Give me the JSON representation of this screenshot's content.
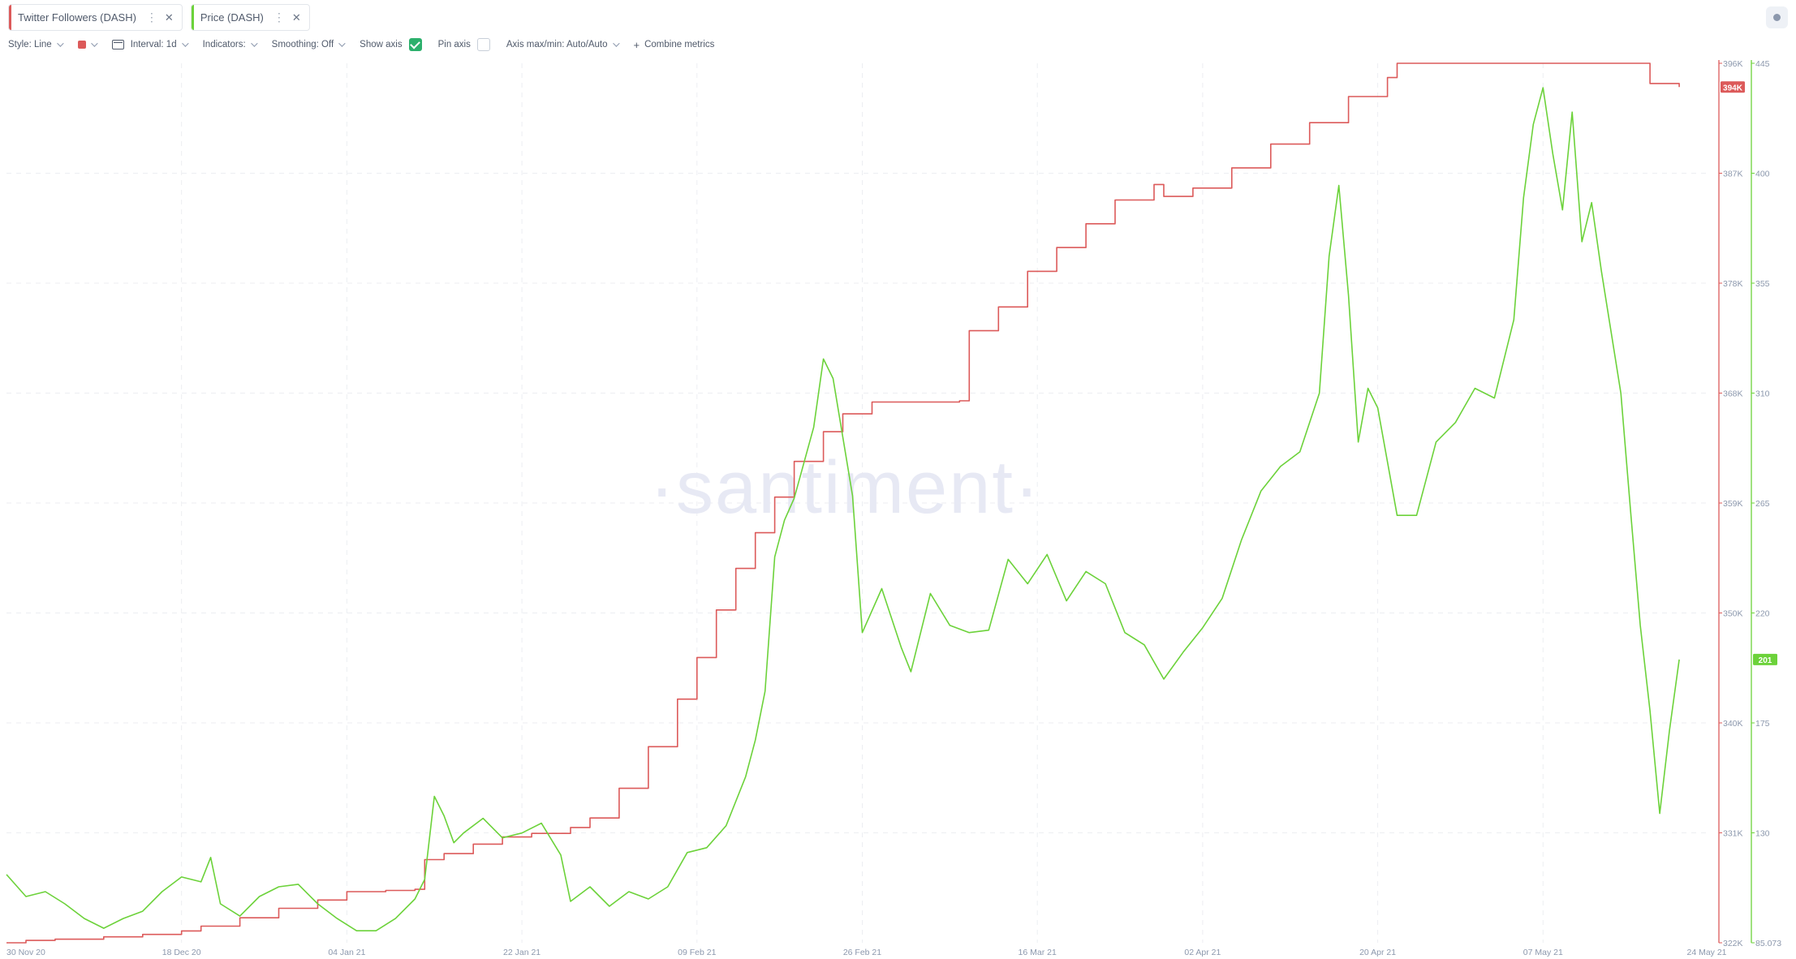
{
  "metrics": [
    {
      "label": "Twitter Followers (DASH)",
      "color": "#dc5a5a"
    },
    {
      "label": "Price (DASH)",
      "color": "#6cd23a"
    }
  ],
  "toolbar": {
    "style": "Style: Line",
    "interval": "Interval: 1d",
    "indicators": "Indicators:",
    "smoothing": "Smoothing: Off",
    "show_axis": "Show axis",
    "show_axis_checked": true,
    "pin_axis": "Pin axis",
    "pin_axis_checked": false,
    "axis_maxmin": "Axis max/min: Auto/Auto",
    "combine": "Combine metrics"
  },
  "watermark": "·santiment·",
  "chart_data": {
    "type": "line",
    "x_ticks": [
      "30 Nov 20",
      "18 Dec 20",
      "04 Jan 21",
      "22 Jan 21",
      "09 Feb 21",
      "26 Feb 21",
      "16 Mar 21",
      "02 Apr 21",
      "20 Apr 21",
      "07 May 21",
      "24 May 21"
    ],
    "x_range": [
      "2020-11-30",
      "2021-05-24"
    ],
    "grid": true,
    "series": [
      {
        "name": "Twitter Followers (DASH)",
        "color": "#dc5a5a",
        "axis_ticks": [
          "396K",
          "387K",
          "378K",
          "368K",
          "359K",
          "350K",
          "340K",
          "331K",
          "322K"
        ],
        "ylim": [
          322000,
          396000
        ],
        "last_value_label": "394K",
        "last_value": 394000,
        "points": [
          [
            "2020-11-30",
            322000
          ],
          [
            "2020-12-02",
            322200
          ],
          [
            "2020-12-05",
            322300
          ],
          [
            "2020-12-10",
            322500
          ],
          [
            "2020-12-14",
            322700
          ],
          [
            "2020-12-18",
            323000
          ],
          [
            "2020-12-20",
            323400
          ],
          [
            "2020-12-24",
            324100
          ],
          [
            "2020-12-28",
            324900
          ],
          [
            "2021-01-01",
            325600
          ],
          [
            "2021-01-04",
            326300
          ],
          [
            "2021-01-08",
            326400
          ],
          [
            "2021-01-11",
            326500
          ],
          [
            "2021-01-12",
            329000
          ],
          [
            "2021-01-14",
            329500
          ],
          [
            "2021-01-17",
            330300
          ],
          [
            "2021-01-20",
            330900
          ],
          [
            "2021-01-23",
            331200
          ],
          [
            "2021-01-27",
            331700
          ],
          [
            "2021-01-29",
            332500
          ],
          [
            "2021-02-01",
            335000
          ],
          [
            "2021-02-04",
            338500
          ],
          [
            "2021-02-07",
            342500
          ],
          [
            "2021-02-09",
            346000
          ],
          [
            "2021-02-11",
            350000
          ],
          [
            "2021-02-13",
            353500
          ],
          [
            "2021-02-15",
            356500
          ],
          [
            "2021-02-17",
            359500
          ],
          [
            "2021-02-19",
            362500
          ],
          [
            "2021-02-22",
            365000
          ],
          [
            "2021-02-24",
            366500
          ],
          [
            "2021-02-27",
            367500
          ],
          [
            "2021-03-05",
            367500
          ],
          [
            "2021-03-08",
            367600
          ],
          [
            "2021-03-09",
            373500
          ],
          [
            "2021-03-12",
            375500
          ],
          [
            "2021-03-15",
            378500
          ],
          [
            "2021-03-18",
            380500
          ],
          [
            "2021-03-21",
            382500
          ],
          [
            "2021-03-24",
            384500
          ],
          [
            "2021-03-28",
            385800
          ],
          [
            "2021-03-29",
            384800
          ],
          [
            "2021-04-01",
            385500
          ],
          [
            "2021-04-05",
            387200
          ],
          [
            "2021-04-09",
            389200
          ],
          [
            "2021-04-13",
            391000
          ],
          [
            "2021-04-17",
            393200
          ],
          [
            "2021-04-21",
            394800
          ],
          [
            "2021-04-22",
            396000
          ],
          [
            "2021-05-17",
            396000
          ],
          [
            "2021-05-18",
            394300
          ],
          [
            "2021-05-21",
            394000
          ]
        ]
      },
      {
        "name": "Price (DASH)",
        "color": "#6cd23a",
        "axis_ticks": [
          "445",
          "400",
          "355",
          "310",
          "265",
          "220",
          "175",
          "130",
          "85.073"
        ],
        "ylim": [
          85.073,
          445
        ],
        "last_value_label": "201",
        "last_value": 201,
        "points": [
          [
            "2020-11-30",
            113
          ],
          [
            "2020-12-02",
            104
          ],
          [
            "2020-12-04",
            106
          ],
          [
            "2020-12-06",
            101
          ],
          [
            "2020-12-08",
            95
          ],
          [
            "2020-12-10",
            91
          ],
          [
            "2020-12-12",
            95
          ],
          [
            "2020-12-14",
            98
          ],
          [
            "2020-12-16",
            106
          ],
          [
            "2020-12-18",
            112
          ],
          [
            "2020-12-20",
            110
          ],
          [
            "2020-12-21",
            120
          ],
          [
            "2020-12-22",
            101
          ],
          [
            "2020-12-24",
            96
          ],
          [
            "2020-12-26",
            104
          ],
          [
            "2020-12-28",
            108
          ],
          [
            "2020-12-30",
            109
          ],
          [
            "2021-01-01",
            101
          ],
          [
            "2021-01-03",
            95
          ],
          [
            "2021-01-05",
            90
          ],
          [
            "2021-01-07",
            90
          ],
          [
            "2021-01-09",
            95
          ],
          [
            "2021-01-11",
            103
          ],
          [
            "2021-01-12",
            111
          ],
          [
            "2021-01-13",
            145
          ],
          [
            "2021-01-14",
            137
          ],
          [
            "2021-01-15",
            126
          ],
          [
            "2021-01-16",
            130
          ],
          [
            "2021-01-18",
            136
          ],
          [
            "2021-01-20",
            128
          ],
          [
            "2021-01-22",
            130
          ],
          [
            "2021-01-24",
            134
          ],
          [
            "2021-01-26",
            121
          ],
          [
            "2021-01-27",
            102
          ],
          [
            "2021-01-29",
            108
          ],
          [
            "2021-01-31",
            100
          ],
          [
            "2021-02-02",
            106
          ],
          [
            "2021-02-04",
            103
          ],
          [
            "2021-02-06",
            108
          ],
          [
            "2021-02-08",
            122
          ],
          [
            "2021-02-10",
            124
          ],
          [
            "2021-02-12",
            133
          ],
          [
            "2021-02-14",
            153
          ],
          [
            "2021-02-15",
            168
          ],
          [
            "2021-02-16",
            188
          ],
          [
            "2021-02-17",
            243
          ],
          [
            "2021-02-18",
            258
          ],
          [
            "2021-02-19",
            267
          ],
          [
            "2021-02-21",
            296
          ],
          [
            "2021-02-22",
            324
          ],
          [
            "2021-02-23",
            316
          ],
          [
            "2021-02-24",
            292
          ],
          [
            "2021-02-25",
            268
          ],
          [
            "2021-02-26",
            212
          ],
          [
            "2021-02-28",
            230
          ],
          [
            "2021-03-02",
            206
          ],
          [
            "2021-03-03",
            196
          ],
          [
            "2021-03-05",
            228
          ],
          [
            "2021-03-07",
            215
          ],
          [
            "2021-03-09",
            212
          ],
          [
            "2021-03-11",
            213
          ],
          [
            "2021-03-13",
            242
          ],
          [
            "2021-03-15",
            232
          ],
          [
            "2021-03-17",
            244
          ],
          [
            "2021-03-19",
            225
          ],
          [
            "2021-03-21",
            237
          ],
          [
            "2021-03-23",
            232
          ],
          [
            "2021-03-25",
            212
          ],
          [
            "2021-03-27",
            207
          ],
          [
            "2021-03-29",
            193
          ],
          [
            "2021-03-31",
            204
          ],
          [
            "2021-04-02",
            214
          ],
          [
            "2021-04-04",
            226
          ],
          [
            "2021-04-06",
            250
          ],
          [
            "2021-04-08",
            270
          ],
          [
            "2021-04-10",
            280
          ],
          [
            "2021-04-12",
            286
          ],
          [
            "2021-04-14",
            310
          ],
          [
            "2021-04-15",
            366
          ],
          [
            "2021-04-16",
            395
          ],
          [
            "2021-04-17",
            350
          ],
          [
            "2021-04-18",
            290
          ],
          [
            "2021-04-19",
            312
          ],
          [
            "2021-04-20",
            304
          ],
          [
            "2021-04-22",
            260
          ],
          [
            "2021-04-24",
            260
          ],
          [
            "2021-04-26",
            290
          ],
          [
            "2021-04-28",
            298
          ],
          [
            "2021-04-30",
            312
          ],
          [
            "2021-05-02",
            308
          ],
          [
            "2021-05-04",
            340
          ],
          [
            "2021-05-05",
            390
          ],
          [
            "2021-05-06",
            420
          ],
          [
            "2021-05-07",
            435
          ],
          [
            "2021-05-08",
            408
          ],
          [
            "2021-05-09",
            385
          ],
          [
            "2021-05-10",
            425
          ],
          [
            "2021-05-11",
            372
          ],
          [
            "2021-05-12",
            388
          ],
          [
            "2021-05-13",
            360
          ],
          [
            "2021-05-14",
            335
          ],
          [
            "2021-05-15",
            310
          ],
          [
            "2021-05-16",
            262
          ],
          [
            "2021-05-17",
            215
          ],
          [
            "2021-05-18",
            180
          ],
          [
            "2021-05-19",
            138
          ],
          [
            "2021-05-20",
            172
          ],
          [
            "2021-05-21",
            201
          ]
        ]
      }
    ]
  }
}
